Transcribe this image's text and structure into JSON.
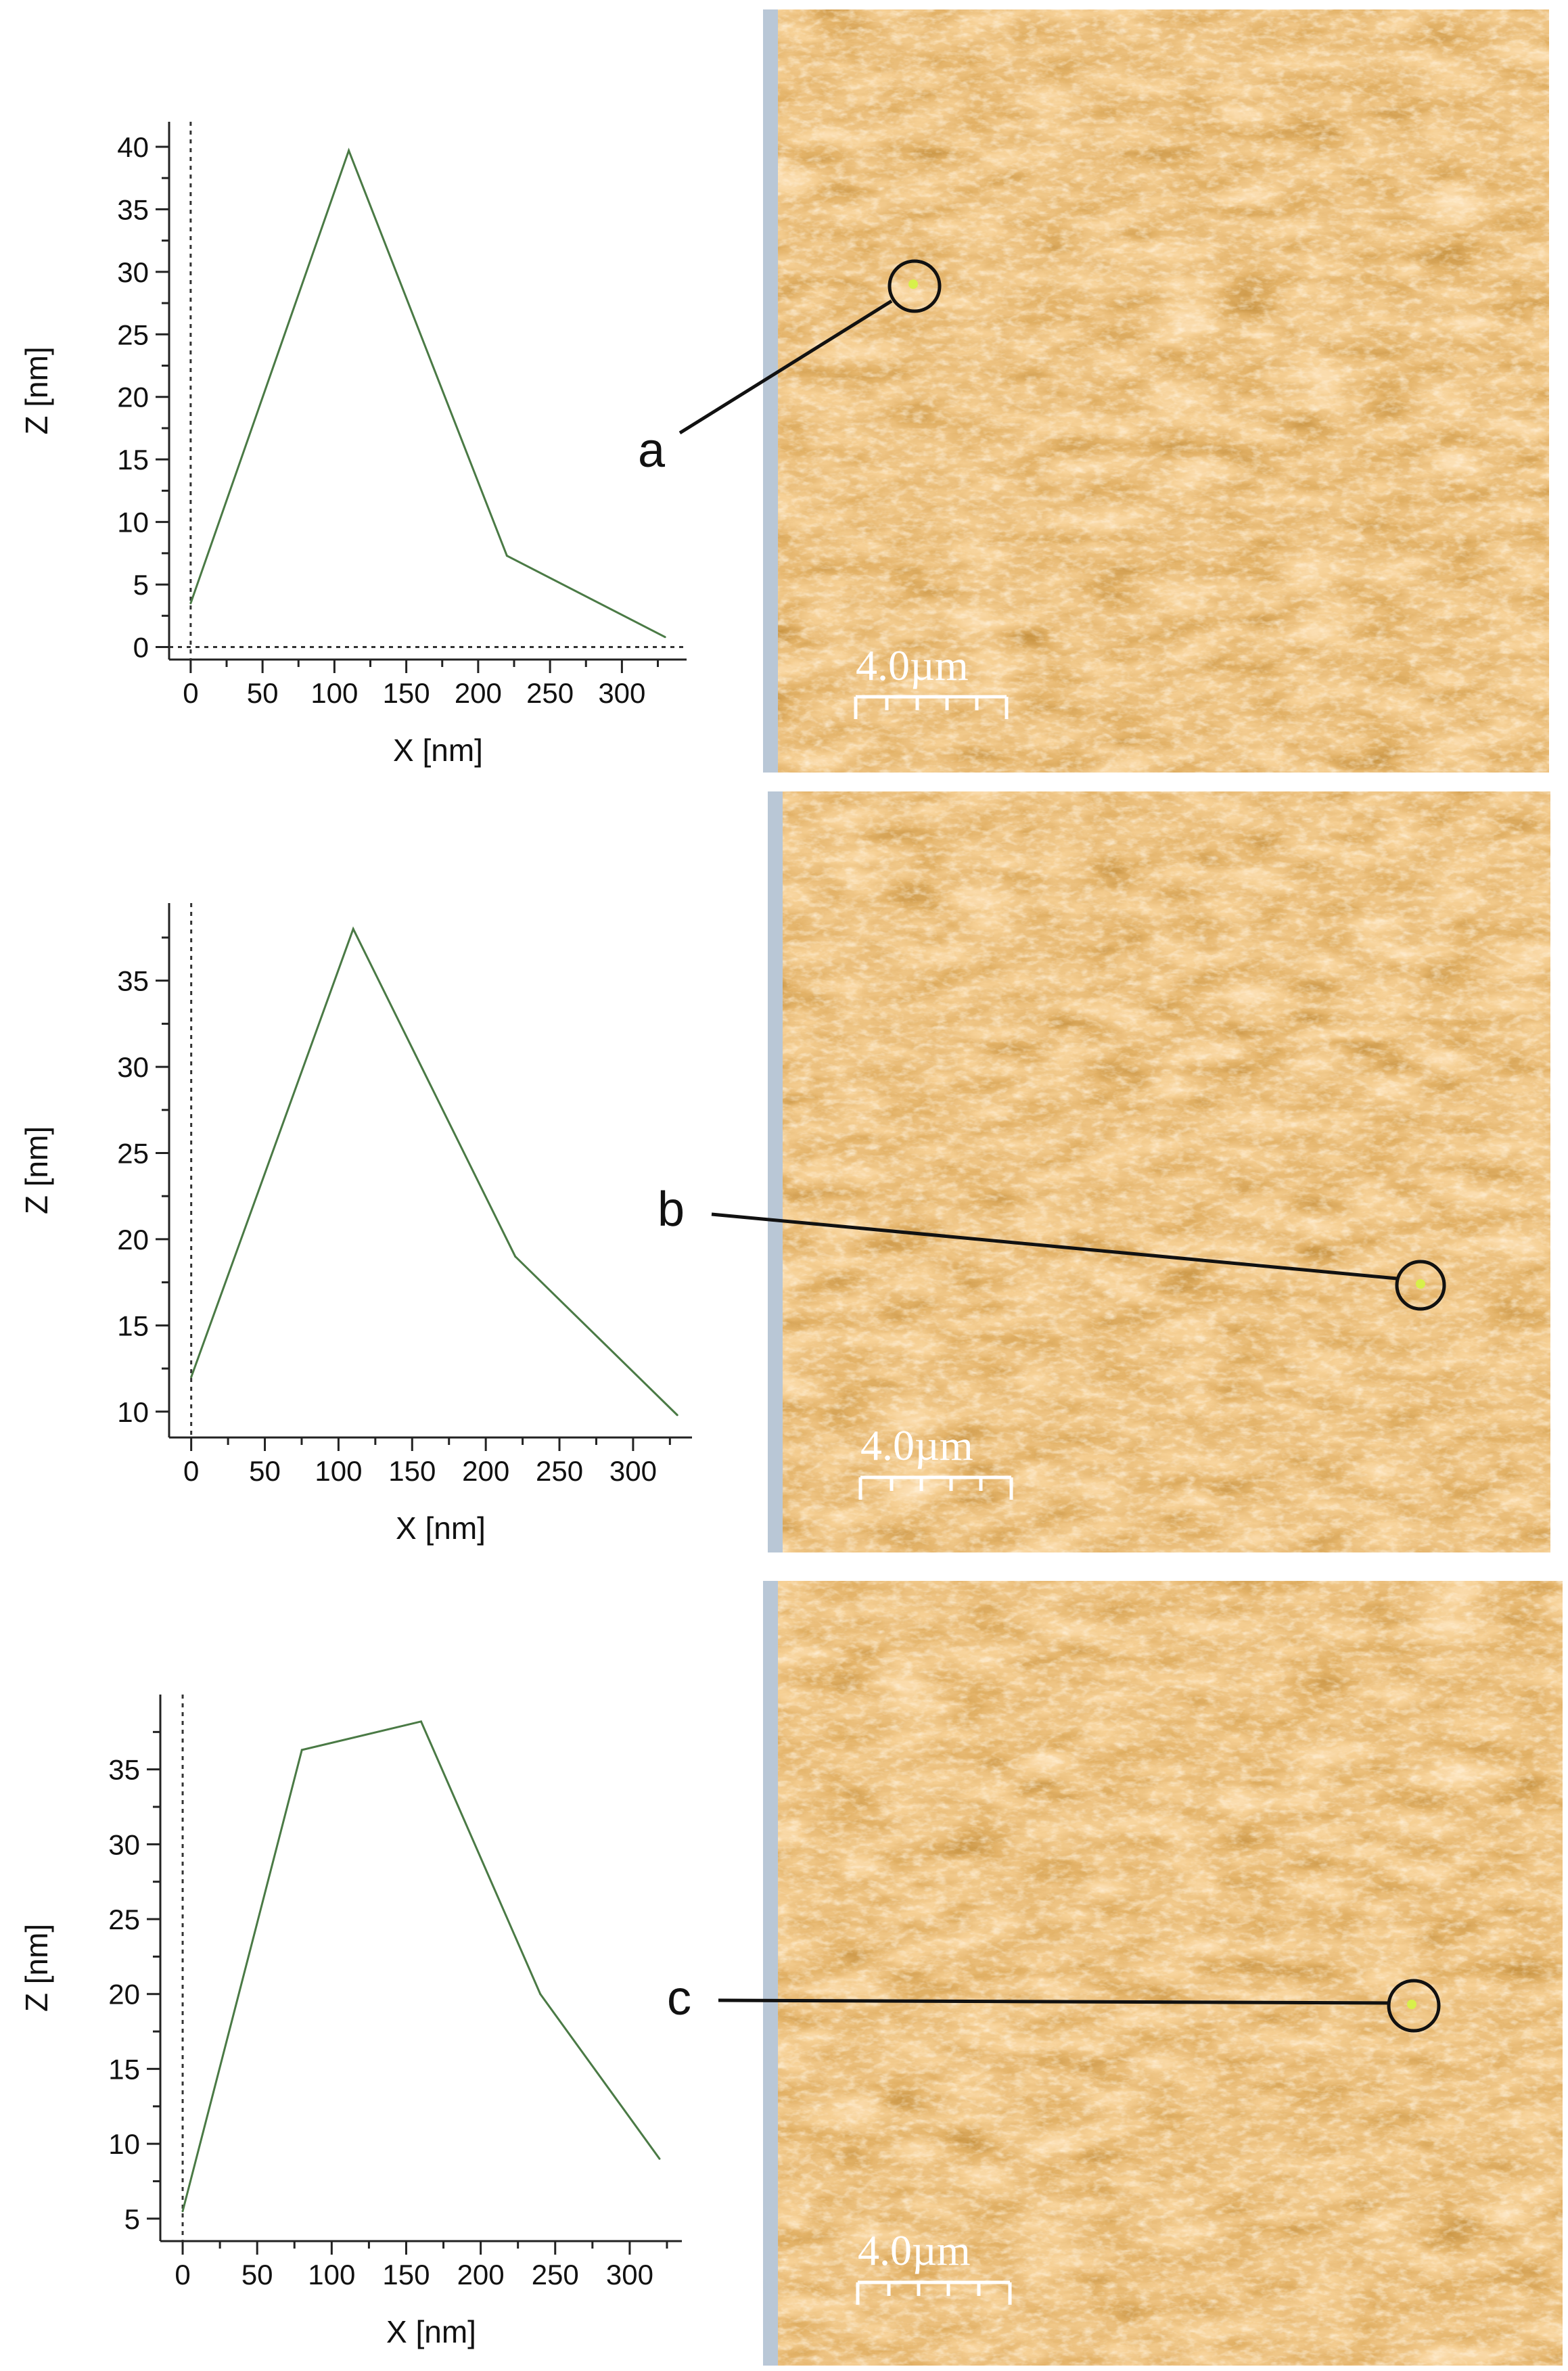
{
  "chart_data": [
    {
      "type": "line",
      "xlabel": "X [nm]",
      "ylabel": "Z [nm]",
      "xlim": [
        -15,
        345
      ],
      "ylim": [
        -1,
        42
      ],
      "xticks": [
        0,
        50,
        100,
        150,
        200,
        250,
        300
      ],
      "yticks": [
        0,
        5,
        10,
        15,
        20,
        25,
        30,
        35,
        40
      ],
      "zero_lines": true,
      "series": [
        {
          "x": [
            0,
            110,
            220,
            330
          ],
          "y": [
            3.5,
            39.7,
            7.3,
            0.8
          ]
        }
      ]
    },
    {
      "type": "line",
      "xlabel": "X [nm]",
      "ylabel": "Z [nm]",
      "xlim": [
        -15,
        340
      ],
      "ylim": [
        8.5,
        39.5
      ],
      "xticks": [
        0,
        50,
        100,
        150,
        200,
        250,
        300
      ],
      "yticks": [
        10,
        15,
        20,
        25,
        30,
        35
      ],
      "zero_lines": false,
      "series": [
        {
          "x": [
            0,
            110,
            220,
            330
          ],
          "y": [
            12.0,
            38.0,
            19.0,
            9.8
          ]
        }
      ]
    },
    {
      "type": "line",
      "xlabel": "X [nm]",
      "ylabel": "Z [nm]",
      "xlim": [
        -15,
        335
      ],
      "ylim": [
        3.5,
        40
      ],
      "xticks": [
        0,
        50,
        100,
        150,
        200,
        250,
        300
      ],
      "yticks": [
        5,
        10,
        15,
        20,
        25,
        30,
        35
      ],
      "zero_lines": false,
      "series": [
        {
          "x": [
            0,
            80,
            160,
            240,
            320
          ],
          "y": [
            5.5,
            36.3,
            38.2,
            20.0,
            9.0
          ]
        }
      ]
    }
  ],
  "images": [
    {
      "label": "a",
      "scale_bar": "4.0µm"
    },
    {
      "label": "b",
      "scale_bar": "4.0µm"
    },
    {
      "label": "c",
      "scale_bar": "4.0µm"
    }
  ],
  "colors": {
    "line": "#4a7a45",
    "afm_dark": "#6b2c00",
    "afm_mid": "#c4711f",
    "afm_light": "#f3cf95",
    "afm_highlight": "#fff0cf"
  }
}
